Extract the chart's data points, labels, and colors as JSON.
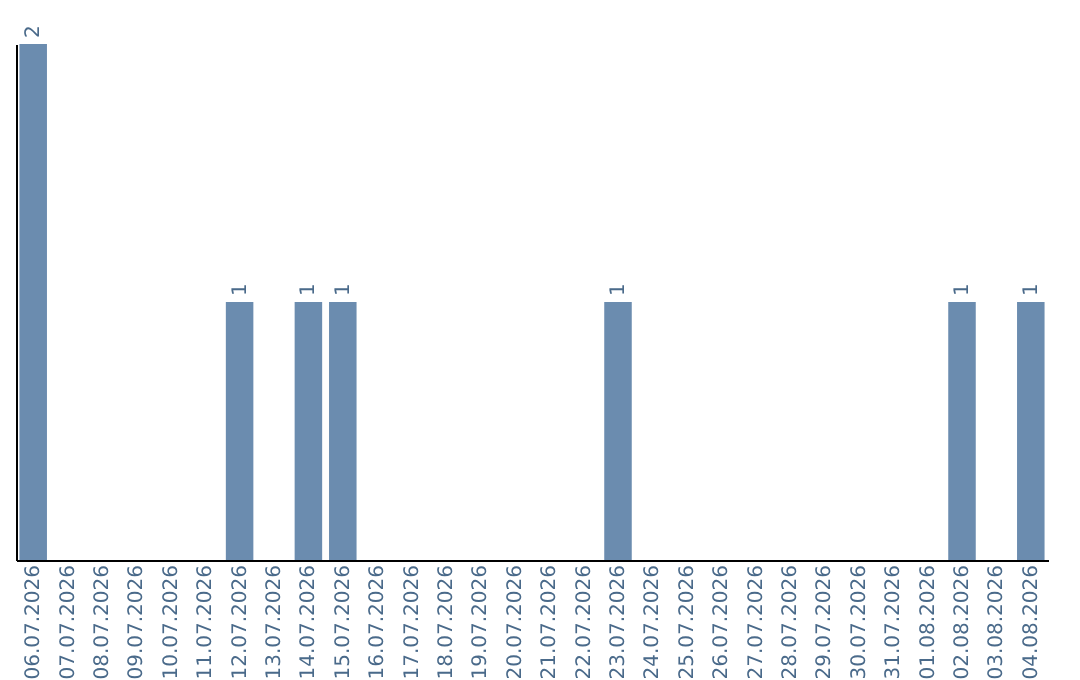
{
  "chart_data": {
    "type": "bar",
    "categories": [
      "06.07.2026",
      "07.07.2026",
      "08.07.2026",
      "09.07.2026",
      "10.07.2026",
      "11.07.2026",
      "12.07.2026",
      "13.07.2026",
      "14.07.2026",
      "15.07.2026",
      "16.07.2026",
      "17.07.2026",
      "18.07.2026",
      "19.07.2026",
      "20.07.2026",
      "21.07.2026",
      "22.07.2026",
      "23.07.2026",
      "24.07.2026",
      "25.07.2026",
      "26.07.2026",
      "27.07.2026",
      "28.07.2026",
      "29.07.2026",
      "30.07.2026",
      "31.07.2026",
      "01.08.2026",
      "02.08.2026",
      "03.08.2026",
      "04.08.2026"
    ],
    "values": [
      2,
      0,
      0,
      0,
      0,
      0,
      1,
      0,
      1,
      1,
      0,
      0,
      0,
      0,
      0,
      0,
      0,
      1,
      0,
      0,
      0,
      0,
      0,
      0,
      0,
      0,
      0,
      1,
      0,
      1
    ],
    "value_labels": [
      "2",
      null,
      null,
      null,
      null,
      null,
      "1",
      null,
      "1",
      "1",
      null,
      null,
      null,
      null,
      null,
      null,
      null,
      "1",
      null,
      null,
      null,
      null,
      null,
      null,
      null,
      null,
      null,
      "1",
      null,
      "1"
    ],
    "color": "#6b8caf",
    "ylim": [
      0,
      2
    ],
    "tick_labels": "x",
    "grid": false
  }
}
